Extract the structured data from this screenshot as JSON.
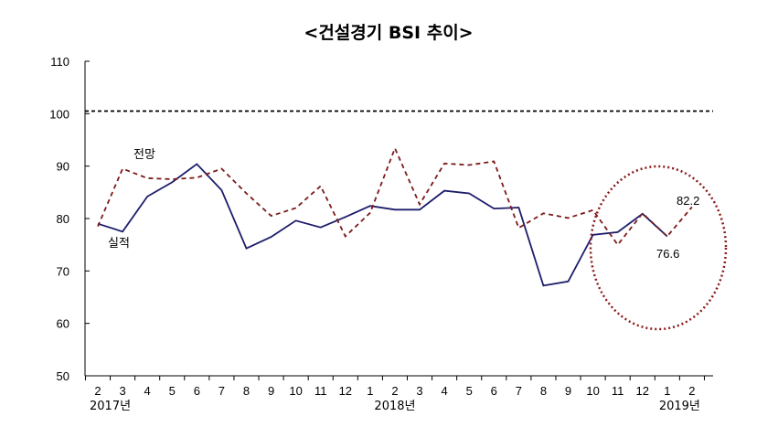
{
  "chart_data": {
    "type": "line",
    "title": "<건설경기 BSI 추이>",
    "ylim": [
      50,
      110
    ],
    "yticks": [
      "110",
      "100",
      "90",
      "80",
      "70",
      "60",
      "50"
    ],
    "categories": [
      "2",
      "3",
      "4",
      "5",
      "6",
      "7",
      "8",
      "9",
      "10",
      "11",
      "12",
      "1",
      "2",
      "3",
      "4",
      "5",
      "6",
      "7",
      "8",
      "9",
      "10",
      "11",
      "12",
      "1",
      "2"
    ],
    "year_labels": [
      "2017년",
      "2018년",
      "2019년"
    ],
    "series": [
      {
        "name": "실적",
        "color": "#1c1c6b",
        "style": "solid",
        "values": [
          79.0,
          77.5,
          84.2,
          86.9,
          90.4,
          85.4,
          74.3,
          76.5,
          79.6,
          78.3,
          80.3,
          82.4,
          81.7,
          81.7,
          85.3,
          84.8,
          81.9,
          82.1,
          67.2,
          68.0,
          76.9,
          77.4,
          80.9,
          76.6,
          null
        ]
      },
      {
        "name": "전망",
        "color": "#7b1a1a",
        "style": "dashed",
        "values": [
          78.5,
          89.5,
          87.7,
          87.5,
          87.8,
          89.5,
          84.8,
          80.5,
          82.0,
          86.2,
          76.6,
          81.1,
          93.4,
          82.7,
          90.5,
          90.2,
          90.9,
          78.2,
          81.0,
          80.1,
          81.6,
          75.0,
          81.0,
          76.6,
          82.2
        ]
      }
    ],
    "reference_line": {
      "value": 100.5,
      "style": "dashed",
      "color": "#000000"
    },
    "annotations": [
      "76.6",
      "82.2"
    ],
    "highlight": {
      "shape": "dotted-ellipse",
      "color": "#8b1a1a"
    }
  }
}
